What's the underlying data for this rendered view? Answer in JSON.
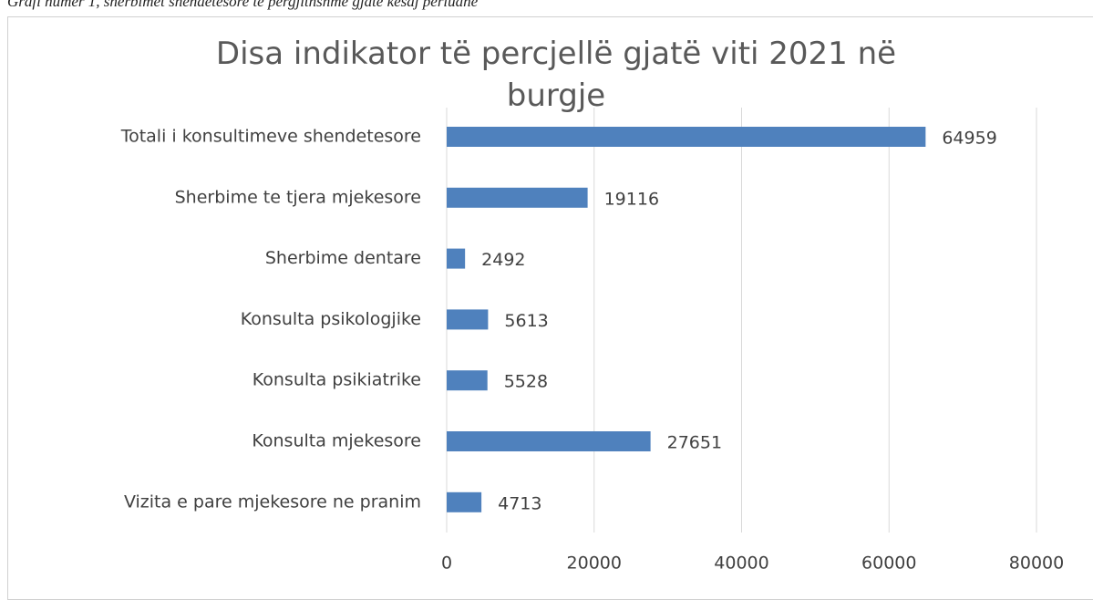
{
  "caption": "Grafi numer 1, sherbimet shendetesore te pergjithshme gjate kesaj periudhe",
  "chart_data": {
    "type": "bar",
    "orientation": "horizontal",
    "title": "Disa indikator të percjellë gjatë viti 2021 në burgje",
    "categories": [
      "Totali i konsultimeve shendetesore",
      "Sherbime te tjera mjekesore",
      "Sherbime dentare",
      "Konsulta psikologjike",
      "Konsulta psikiatrike",
      "Konsulta mjekesore",
      "Vizita e pare mjekesore ne pranim"
    ],
    "values": [
      64959,
      19116,
      2492,
      5613,
      5528,
      27651,
      4713
    ],
    "color": "#4f81bd",
    "xlim": [
      0,
      80000
    ],
    "xticks": [
      0,
      20000,
      40000,
      60000,
      80000
    ],
    "grid": true
  }
}
